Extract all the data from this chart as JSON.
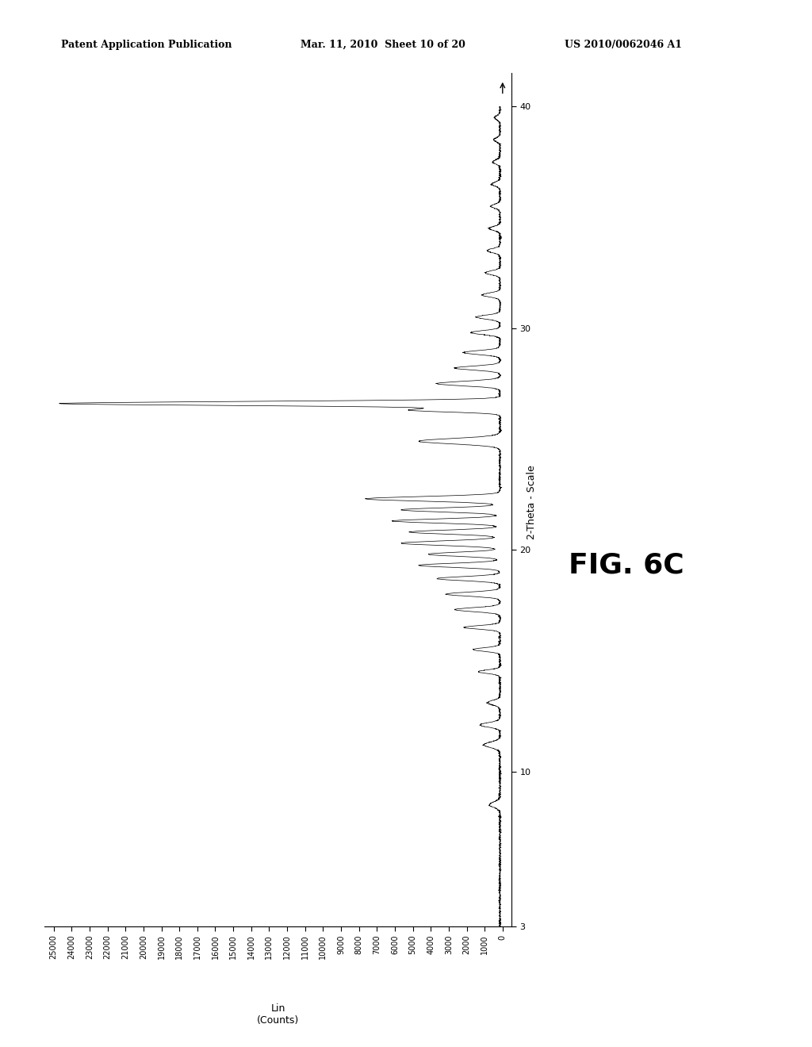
{
  "header_left": "Patent Application Publication",
  "header_mid": "Mar. 11, 2010  Sheet 10 of 20",
  "header_right": "US 2010/0062046 A1",
  "fig_label": "FIG. 6C",
  "theta_axis_label": "2-Theta - Scale",
  "counts_axis_label": "Lin\n(Counts)",
  "theta_ticks": [
    3,
    10,
    20,
    30,
    40
  ],
  "counts_ticks": [
    0,
    1000,
    2000,
    3000,
    4000,
    5000,
    6000,
    7000,
    8000,
    9000,
    10000,
    11000,
    12000,
    13000,
    14000,
    15000,
    16000,
    17000,
    18000,
    19000,
    20000,
    21000,
    22000,
    23000,
    24000,
    25000
  ],
  "theta_lim": [
    3,
    41.5
  ],
  "counts_lim": [
    25500,
    -500
  ],
  "line_color": "#000000",
  "background_color": "#ffffff",
  "fig_label_fontsize": 26,
  "axis_label_fontsize": 9,
  "tick_fontsize": 8,
  "header_fontsize": 9
}
